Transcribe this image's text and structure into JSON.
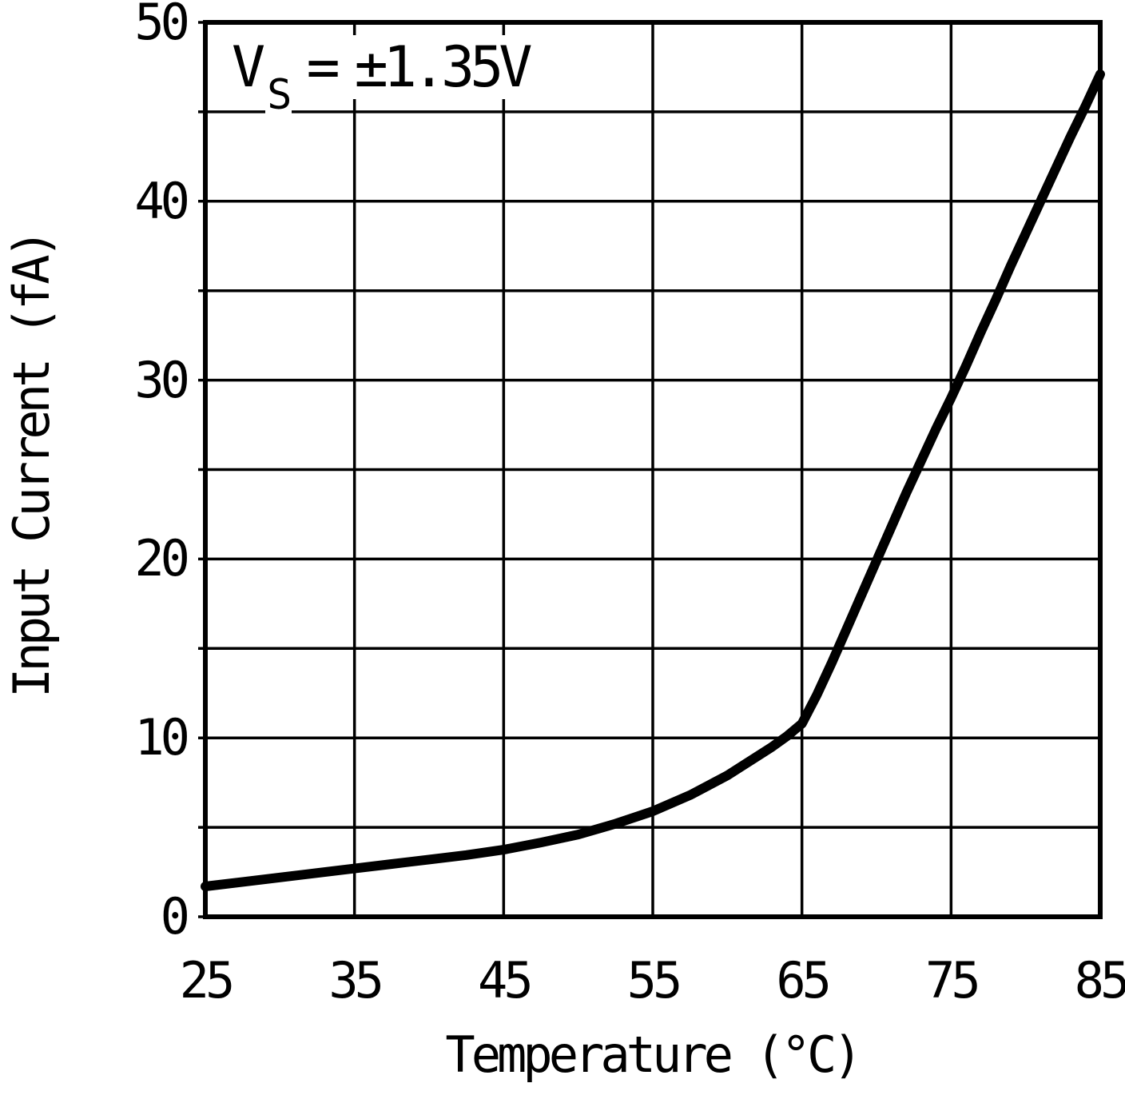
{
  "page": {
    "background": "#ffffff"
  },
  "chart_data": {
    "type": "line",
    "title": "",
    "xlabel": "Temperature (°C)",
    "ylabel": "Input Current (fA)",
    "annotation": {
      "pre": "V",
      "sub": "S",
      "eq": "=",
      "value": "±1.35V"
    },
    "xlim": [
      25,
      85
    ],
    "ylim": [
      0,
      50
    ],
    "x_ticks": [
      25,
      35,
      45,
      55,
      65,
      75,
      85
    ],
    "y_ticks": [
      0,
      10,
      20,
      30,
      40,
      50
    ],
    "x_grid_step": 10,
    "y_grid_step": 5,
    "grid": true,
    "legend_position": "none",
    "colors": {
      "line": "#000000",
      "grid": "#000000",
      "axis": "#000000",
      "text": "#000000",
      "background": "#ffffff"
    },
    "series": [
      {
        "name": "input-current-vs-temperature",
        "points": [
          [
            25,
            1.7
          ],
          [
            27.5,
            1.95
          ],
          [
            30,
            2.2
          ],
          [
            32.5,
            2.45
          ],
          [
            35,
            2.7
          ],
          [
            37.5,
            2.95
          ],
          [
            40,
            3.2
          ],
          [
            42.5,
            3.45
          ],
          [
            45,
            3.75
          ],
          [
            47.5,
            4.15
          ],
          [
            50,
            4.6
          ],
          [
            52.5,
            5.2
          ],
          [
            55,
            5.9
          ],
          [
            57.5,
            6.8
          ],
          [
            60,
            7.9
          ],
          [
            61.5,
            8.7
          ],
          [
            63,
            9.5
          ],
          [
            64,
            10.1
          ],
          [
            65,
            10.8
          ],
          [
            66,
            12.4
          ],
          [
            67,
            14.2
          ],
          [
            68,
            16.1
          ],
          [
            69,
            18.0
          ],
          [
            70,
            19.9
          ],
          [
            71,
            21.8
          ],
          [
            72,
            23.7
          ],
          [
            73,
            25.5
          ],
          [
            74,
            27.3
          ],
          [
            75,
            29.0
          ],
          [
            76,
            30.8
          ],
          [
            77,
            32.7
          ],
          [
            78,
            34.5
          ],
          [
            79,
            36.4
          ],
          [
            80,
            38.2
          ],
          [
            81,
            40.0
          ],
          [
            82,
            41.8
          ],
          [
            83,
            43.6
          ],
          [
            84,
            45.3
          ],
          [
            85,
            47.1
          ]
        ]
      }
    ]
  }
}
